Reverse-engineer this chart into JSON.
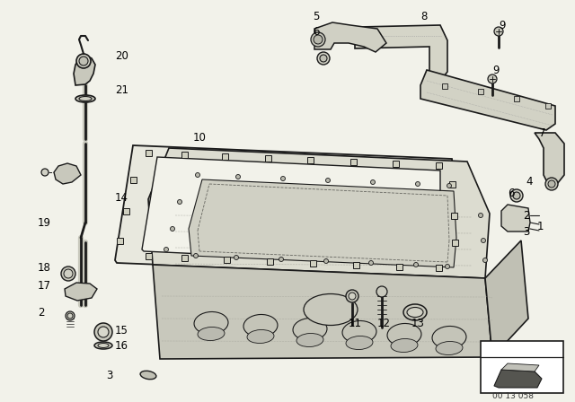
{
  "bg_color": "#f2f2ea",
  "line_color": "#1a1a1a",
  "text_color": "#000000",
  "labels": [
    [
      "20",
      128,
      62
    ],
    [
      "21",
      128,
      100
    ],
    [
      "14",
      128,
      220
    ],
    [
      "19",
      42,
      248
    ],
    [
      "18",
      42,
      298
    ],
    [
      "17",
      42,
      318
    ],
    [
      "2",
      42,
      348
    ],
    [
      "15",
      128,
      368
    ],
    [
      "16",
      128,
      385
    ],
    [
      "3",
      118,
      418
    ],
    [
      "10",
      215,
      153
    ],
    [
      "5",
      348,
      18
    ],
    [
      "6",
      348,
      35
    ],
    [
      "8",
      468,
      18
    ],
    [
      "9",
      555,
      28
    ],
    [
      "9",
      548,
      78
    ],
    [
      "7",
      600,
      148
    ],
    [
      "4",
      585,
      202
    ],
    [
      "6",
      565,
      215
    ],
    [
      "2",
      582,
      240
    ],
    [
      "1",
      598,
      252
    ],
    [
      "3",
      582,
      258
    ],
    [
      "11",
      388,
      360
    ],
    [
      "12",
      420,
      360
    ],
    [
      "13",
      458,
      360
    ]
  ],
  "code_text": "00 13 058"
}
